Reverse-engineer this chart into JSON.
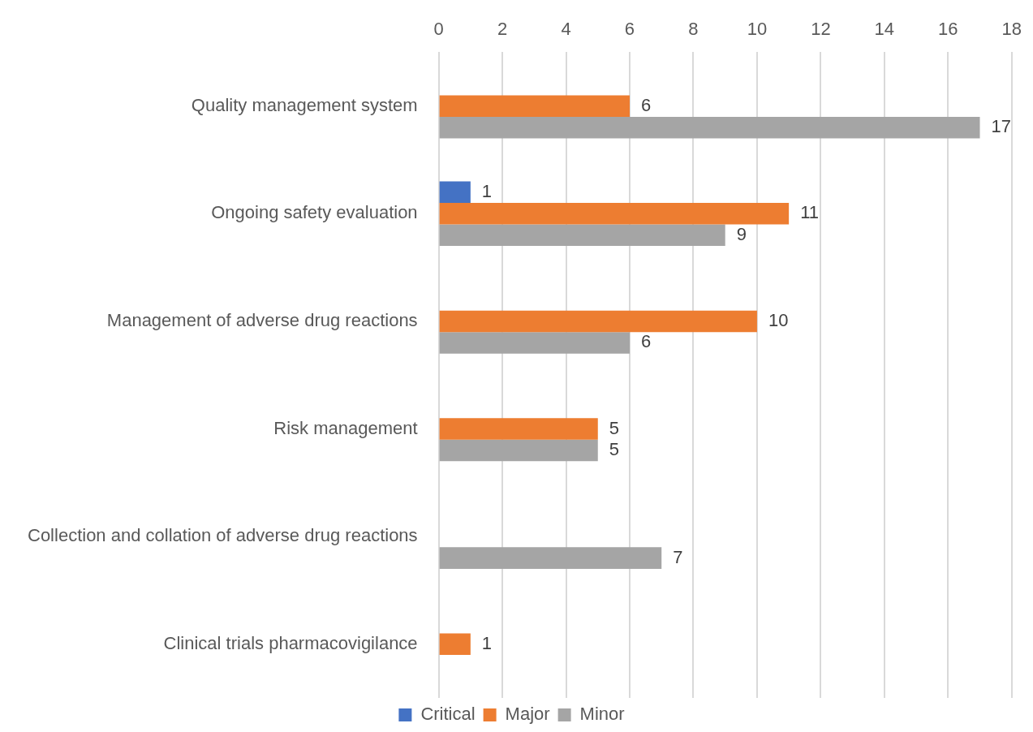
{
  "chart_data": {
    "type": "bar",
    "orientation": "horizontal",
    "categories": [
      "Quality management system",
      "Ongoing safety evaluation",
      "Management of adverse drug reactions",
      "Risk management",
      "Collection and collation of adverse drug reactions",
      "Clinical trials pharmacovigilance"
    ],
    "series": [
      {
        "name": "Critical",
        "color": "#4472c4",
        "values": [
          null,
          1,
          null,
          null,
          null,
          null
        ]
      },
      {
        "name": "Major",
        "color": "#ed7d31",
        "values": [
          6,
          11,
          10,
          5,
          null,
          1
        ]
      },
      {
        "name": "Minor",
        "color": "#a5a5a5",
        "values": [
          17,
          9,
          6,
          5,
          7,
          null
        ]
      }
    ],
    "xlim": [
      0,
      18
    ],
    "xticks": [
      0,
      2,
      4,
      6,
      8,
      10,
      12,
      14,
      16,
      18
    ],
    "grid": "x",
    "legend": "bottom",
    "data_labels": true
  }
}
